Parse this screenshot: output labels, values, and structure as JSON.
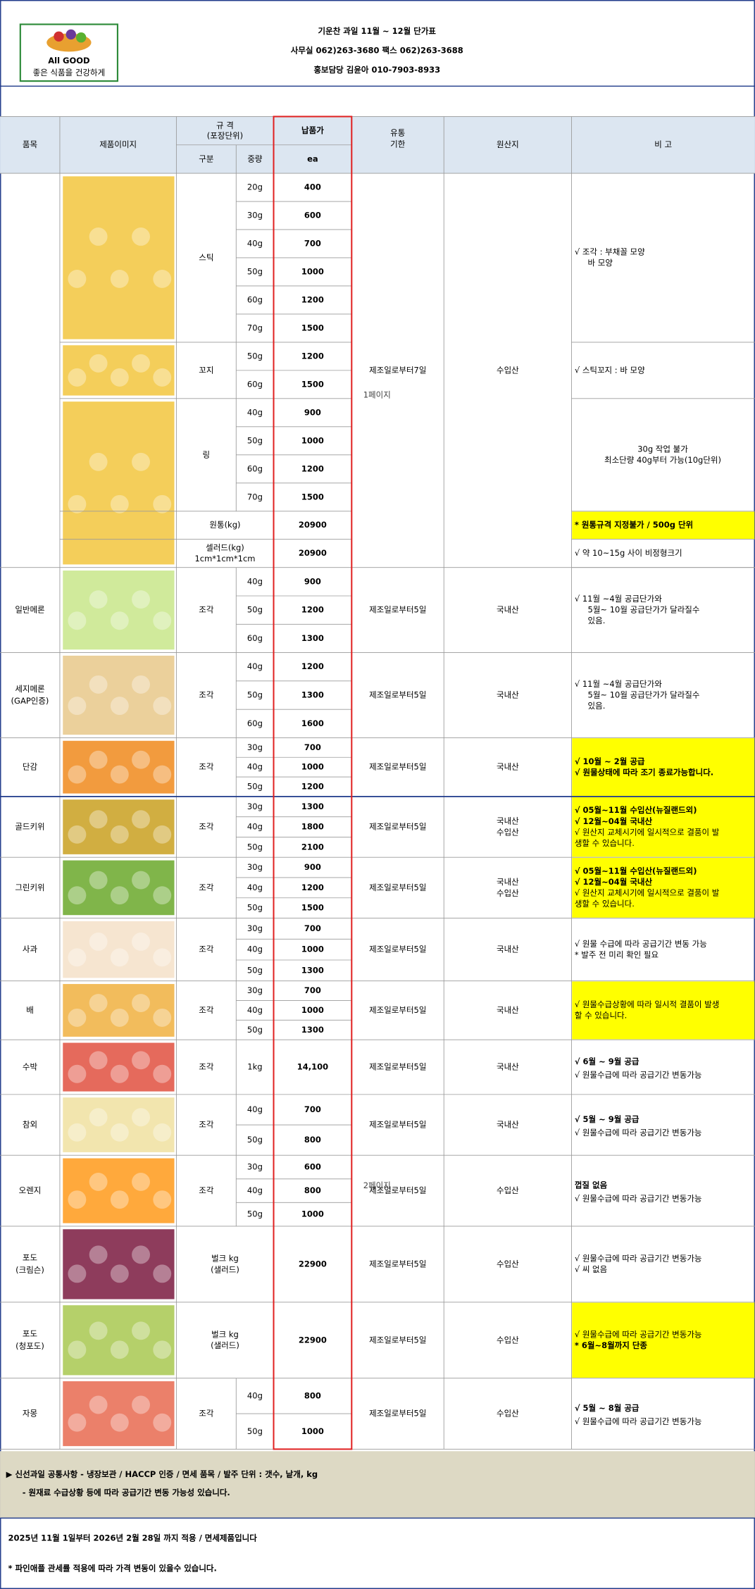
{
  "header": {
    "logo_text": "All GOOD",
    "logo_sub": "좋은 식품을 건강하게",
    "title_lines": [
      "기운찬 과일 11월 ~ 12월 단가표",
      "사무실 062)263-3680 팩스 062)263-3688",
      "홍보담당 김윤아 010-7903-8933"
    ]
  },
  "table": {
    "headers": {
      "item": "품목",
      "image": "제품이미지",
      "spec": [
        "규 격",
        "(포장단위)"
      ],
      "kind": "구분",
      "weight": "중량",
      "price": "납품가",
      "unit": "ea",
      "shelf": [
        "유통",
        "기한"
      ],
      "origin": "원산지",
      "note": "비 고"
    },
    "products": [
      {
        "groups": [
          {
            "type": [
              "스틱"
            ],
            "rows": [
              {
                "weight": "20g",
                "price": 400
              },
              {
                "weight": "30g",
                "price": 600
              },
              {
                "weight": "40g",
                "price": 700
              },
              {
                "weight": "50g",
                "price": 1000
              },
              {
                "weight": "60g",
                "price": 1200
              },
              {
                "weight": "70g",
                "price": 1500
              }
            ],
            "notes": [
              {
                "text": "√ 조각 : 부채꼴 모양",
                "color": "#000000"
              },
              {
                "text": "바 모양",
                "color": "#000000"
              }
            ]
          },
          {
            "type": [
              "꼬지"
            ],
            "rows": [
              {
                "weight": "50g",
                "price": 1200
              },
              {
                "weight": "60g",
                "price": 1500
              }
            ],
            "notes": [
              {
                "text": "√ 스틱꼬지 : 바 모양",
                "color": "#000000"
              }
            ]
          },
          {
            "type": [
              "링"
            ],
            "rows": [
              {
                "weight": "40g",
                "price": 900
              },
              {
                "weight": "50g",
                "price": 1000
              },
              {
                "weight": "60g",
                "price": 1200
              },
              {
                "weight": "70g",
                "price": 1500
              }
            ],
            "notes": [
              {
                "text": "30g 작업 불가",
                "color": "#e02020"
              },
              {
                "text": "최소단량 40g부터 가능(10g단위)",
                "color": "#000000"
              }
            ]
          },
          {
            "type": [
              "원통(kg)"
            ],
            "rows": [
              {
                "price": 20900
              }
            ],
            "notes": [
              {
                "text": "* 원통규격 지정불가 / 500g 단위",
                "color": "#e02020"
              }
            ],
            "note_bg": "#ffff00"
          },
          {
            "type": [
              "셀러드(kg)",
              "1cm*1cm*1cm"
            ],
            "rows": [
              {
                "price": 20900
              }
            ],
            "notes": [
              {
                "text": "√ 약 10~15g 사이 비정형크기",
                "color": "#000000"
              }
            ]
          }
        ],
        "shelf": "제조일로부터7일",
        "origin": [
          "수입산"
        ]
      },
      {
        "name": [
          "일반메론"
        ],
        "groups": [
          {
            "type": [
              "조각"
            ],
            "rows": [
              {
                "weight": "40g",
                "price": 900
              },
              {
                "weight": "50g",
                "price": 1200
              },
              {
                "weight": "60g",
                "price": 1300
              }
            ]
          }
        ],
        "shelf": "제조일로부터5일",
        "origin": [
          "국내산"
        ],
        "notes": [
          {
            "text": "√ 11월 ~4월 공급단가와",
            "color": "#000000"
          },
          {
            "text": "5월~ 10월 공급단가가 달라질수",
            "color": "#000000"
          },
          {
            "text": "있음.",
            "color": "#000000"
          }
        ]
      },
      {
        "name": [
          "세지메론",
          "(GAP인증)"
        ],
        "groups": [
          {
            "type": [
              "조각"
            ],
            "rows": [
              {
                "weight": "40g",
                "price": 1200
              },
              {
                "weight": "50g",
                "price": 1300
              },
              {
                "weight": "60g",
                "price": 1600
              }
            ]
          }
        ],
        "shelf": "제조일로부터5일",
        "origin": [
          "국내산"
        ],
        "notes": [
          {
            "text": "√ 11월 ~4월 공급단가와",
            "color": "#000000"
          },
          {
            "text": "5월~ 10월 공급단가가 달라질수",
            "color": "#000000"
          },
          {
            "text": "있음.",
            "color": "#000000"
          }
        ]
      },
      {
        "name": [
          "단감"
        ],
        "groups": [
          {
            "type": [
              "조각"
            ],
            "rows": [
              {
                "weight": "30g",
                "price": 700
              },
              {
                "weight": "40g",
                "price": 1000
              },
              {
                "weight": "50g",
                "price": 1200
              }
            ]
          }
        ],
        "shelf": "제조일로부터5일",
        "origin": [
          "국내산"
        ],
        "notes": [
          {
            "text": "√ 10월 ~ 2월 공급",
            "color": "#000000"
          },
          {
            "text": "√ 원물상태에 따라 조기 종료가능합니다.",
            "color": "#000000"
          }
        ],
        "note_bg": "#ffff00"
      },
      {
        "name": [
          "골드키위"
        ],
        "groups": [
          {
            "type": [
              "조각"
            ],
            "rows": [
              {
                "weight": "30g",
                "price": 1300
              },
              {
                "weight": "40g",
                "price": 1800
              },
              {
                "weight": "50g",
                "price": 2100
              }
            ]
          }
        ],
        "shelf": "제조일로부터5일",
        "origin": [
          "국내산",
          "수입산"
        ],
        "notes": [
          {
            "text": "√ 05월~11월 수입산(뉴질랜드외)",
            "color": "#e02020"
          },
          {
            "text": "√ 12월~04월 국내산",
            "color": "#e02020"
          },
          {
            "text": "√ 원산지 교체시기에 일시적으로 결품이 발",
            "color": "#000000"
          },
          {
            "text": "생할 수 있습니다.",
            "color": "#000000"
          }
        ],
        "note_bg": "#ffff00"
      },
      {
        "name": [
          "그린키위"
        ],
        "groups": [
          {
            "type": [
              "조각"
            ],
            "rows": [
              {
                "weight": "30g",
                "price": 900
              },
              {
                "weight": "40g",
                "price": 1200
              },
              {
                "weight": "50g",
                "price": 1500
              }
            ]
          }
        ],
        "shelf": "제조일로부터5일",
        "origin": [
          "국내산",
          "수입산"
        ],
        "notes": [
          {
            "text": "√ 05월~11월 수입산(뉴질랜드외)",
            "color": "#e02020"
          },
          {
            "text": "√ 12월~04월 국내산",
            "color": "#e02020"
          },
          {
            "text": "√ 원산지 교체시기에 일시적으로 결품이 발",
            "color": "#000000"
          },
          {
            "text": "생할 수 있습니다.",
            "color": "#000000"
          }
        ],
        "note_bg": "#ffff00"
      },
      {
        "name": [
          "사과"
        ],
        "groups": [
          {
            "type": [
              "조각"
            ],
            "rows": [
              {
                "weight": "30g",
                "price": 700
              },
              {
                "weight": "40g",
                "price": 1000
              },
              {
                "weight": "50g",
                "price": 1300
              }
            ]
          }
        ],
        "shelf": "제조일로부터5일",
        "origin": [
          "국내산"
        ],
        "notes": [
          {
            "text": "√ 원물 수급에 따라 공급기간 변동 가능",
            "color": "#000000"
          },
          {
            "text": "* 발주 전 미리 확인 필요",
            "color": "#e02020"
          }
        ]
      },
      {
        "name": [
          "배"
        ],
        "groups": [
          {
            "type": [
              "조각"
            ],
            "rows": [
              {
                "weight": "30g",
                "price": 700
              },
              {
                "weight": "40g",
                "price": 1000
              },
              {
                "weight": "50g",
                "price": 1300
              }
            ]
          }
        ],
        "shelf": "제조일로부터5일",
        "origin": [
          "국내산"
        ],
        "notes": [
          {
            "text": "√ 원물수급상황에 따라 일시적 결품이 발생",
            "color": "#000000"
          },
          {
            "text": "할 수 있습니다.",
            "color": "#000000"
          }
        ],
        "note_bg": "#ffff00"
      },
      {
        "name": [
          "수박"
        ],
        "groups": [
          {
            "type": [
              "조각"
            ],
            "rows": [
              {
                "weight": "1kg",
                "price": "14,100"
              }
            ]
          }
        ],
        "shelf": "제조일로부터5일",
        "origin": [
          "국내산"
        ],
        "notes": [
          {
            "text": "√ 6월 ~ 9월 공급",
            "color": "#e02020"
          },
          {
            "text": "√ 원물수급에 따라 공급기간 변동가능",
            "color": "#000000"
          }
        ]
      },
      {
        "name": [
          "참외"
        ],
        "groups": [
          {
            "type": [
              "조각"
            ],
            "rows": [
              {
                "weight": "40g",
                "price": 700
              },
              {
                "weight": "50g",
                "price": 800
              }
            ]
          }
        ],
        "shelf": "제조일로부터5일",
        "origin": [
          "국내산"
        ],
        "notes": [
          {
            "text": "√ 5월 ~ 9월 공급",
            "color": "#e02020"
          },
          {
            "text": "√ 원물수급에 따라 공급기간 변동가능",
            "color": "#000000"
          }
        ]
      },
      {
        "name": [
          "오렌지"
        ],
        "groups": [
          {
            "type": [
              "조각"
            ],
            "rows": [
              {
                "weight": "30g",
                "price": 600
              },
              {
                "weight": "40g",
                "price": 800
              },
              {
                "weight": "50g",
                "price": 1000
              }
            ]
          }
        ],
        "shelf": "제조일로부터5일",
        "origin": [
          "수입산"
        ],
        "notes": [
          {
            "text": "껍질 없음",
            "color": "#e02020"
          },
          {
            "text": "√ 원물수급에 따라 공급기간 변동가능",
            "color": "#000000"
          }
        ]
      },
      {
        "name": [
          "포도",
          "(크림슨)"
        ],
        "groups": [
          {
            "type": [
              "벌크 kg",
              "(샐러드)"
            ],
            "rows": [
              {
                "price": 22900
              }
            ]
          }
        ],
        "shelf": "제조일로부터5일",
        "origin": [
          "수입산"
        ],
        "notes": [
          {
            "text": "√ 원물수급에 따라 공급기간 변동가능",
            "color": "#000000"
          },
          {
            "text": "√ 씨 없음",
            "color": "#000000"
          }
        ]
      },
      {
        "name": [
          "포도",
          "(청포도)"
        ],
        "groups": [
          {
            "type": [
              "벌크 kg",
              "(샐러드)"
            ],
            "rows": [
              {
                "price": 22900
              }
            ]
          }
        ],
        "shelf": "제조일로부터5일",
        "origin": [
          "수입산"
        ],
        "notes": [
          {
            "text": "√ 원물수급에 따라 공급기간 변동가능",
            "color": "#000000"
          },
          {
            "text": "* 6월~8월까지 단종",
            "color": "#e02020"
          }
        ],
        "note_bg": "#ffff00"
      },
      {
        "name": [
          "자몽"
        ],
        "groups": [
          {
            "type": [
              "조각"
            ],
            "rows": [
              {
                "weight": "40g",
                "price": 800
              },
              {
                "weight": "50g",
                "price": 1000
              }
            ]
          }
        ],
        "shelf": "제조일로부터5일",
        "origin": [
          "수입산"
        ],
        "notes": [
          {
            "text": "√ 5월 ~ 8월 공급",
            "color": "#e02020"
          },
          {
            "text": "√ 원물수급에 따라 공급기간 변동가능",
            "color": "#000000"
          }
        ]
      }
    ]
  },
  "watermarks": [
    "1페이지",
    "2페이지"
  ],
  "footer": {
    "common": [
      "▶ 신선과일 공통사항 - 냉장보관 / HACCP 인증 / 면세 품목 / 발주 단위 : 갯수, 낱개, kg",
      "- 원재료 수급상황 등에 따라 공급기간 변동 가능성 있습니다."
    ],
    "notice": [
      "2025년 11월 1일부터 2026년 2월 28일 까지 적용 / 면세제품입니다",
      "* 파인애플 관세률 적용에 따라 가격 변동이 있을수 있습니다."
    ]
  }
}
